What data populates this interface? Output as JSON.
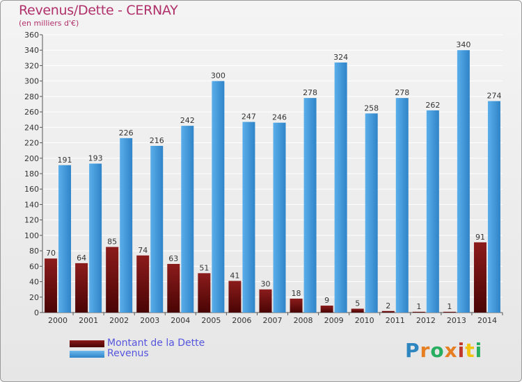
{
  "title": "Revenus/Dette - CERNAY",
  "subtitle": "(en milliers d'€)",
  "logo_text": "Proxiti",
  "colors": {
    "debt": "#6e0a0a",
    "revenue": "#3d93d8",
    "title": "#b0306a",
    "legend_text": "#5555dd",
    "grid": "#ffffff"
  },
  "chart_data": {
    "type": "bar",
    "categories": [
      "2000",
      "2001",
      "2002",
      "2003",
      "2004",
      "2005",
      "2006",
      "2007",
      "2008",
      "2009",
      "2010",
      "2011",
      "2012",
      "2013",
      "2014"
    ],
    "series": [
      {
        "name": "Montant de la Dette",
        "values": [
          70,
          64,
          85,
          74,
          63,
          51,
          41,
          30,
          18,
          9,
          5,
          2,
          1,
          1,
          91
        ]
      },
      {
        "name": "Revenus",
        "values": [
          191,
          193,
          226,
          216,
          242,
          300,
          247,
          246,
          278,
          324,
          258,
          278,
          262,
          340,
          274
        ]
      }
    ],
    "ylim": [
      0,
      360
    ],
    "yticks": [
      0,
      20,
      40,
      60,
      80,
      100,
      120,
      140,
      160,
      180,
      200,
      220,
      240,
      260,
      280,
      300,
      320,
      340,
      360
    ],
    "grid": true,
    "legend_position": "bottom-left"
  }
}
